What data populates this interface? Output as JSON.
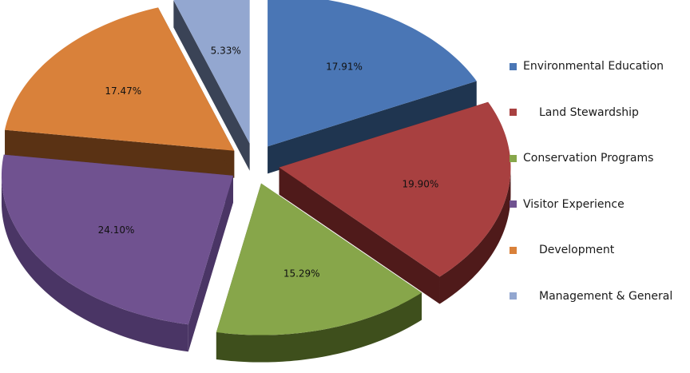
{
  "chart_data": {
    "type": "pie",
    "style": "3d-exploded",
    "slices": [
      {
        "label": "Environmental Education",
        "value": 17.91,
        "display": "17.91%",
        "color": "#4A76B5",
        "side": "#1F3550",
        "legend_indent": false
      },
      {
        "label": "Land Stewardship",
        "value": 19.9,
        "display": "19.90%",
        "color": "#A84040",
        "side": "#4F1A1A",
        "legend_indent": true
      },
      {
        "label": "Conservation Programs",
        "value": 15.29,
        "display": "15.29%",
        "color": "#87A64A",
        "side": "#3E4F1C",
        "legend_indent": false
      },
      {
        "label": "Visitor Experience",
        "value": 24.1,
        "display": "24.10%",
        "color": "#705290",
        "side": "#4A3565",
        "legend_indent": false
      },
      {
        "label": "Development",
        "value": 17.47,
        "display": "17.47%",
        "color": "#D9813A",
        "side": "#5A3214",
        "legend_indent": true
      },
      {
        "label": "Management & General",
        "value": 5.33,
        "display": "5.33%",
        "color": "#93A7D0",
        "side": "#3A4356",
        "legend_indent": true
      }
    ],
    "legend_position": "right"
  }
}
